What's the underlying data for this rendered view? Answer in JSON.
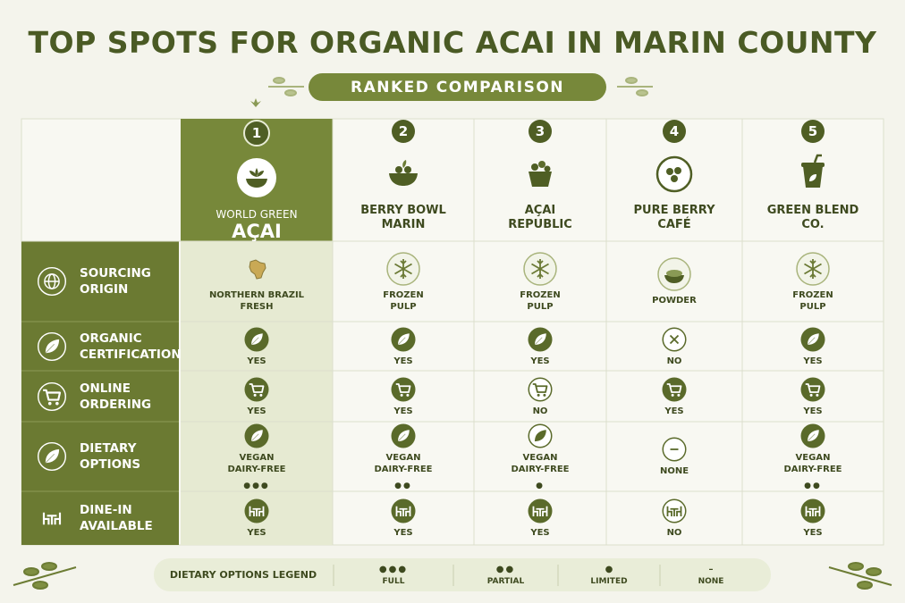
{
  "title": "TOP SPOTS FOR ORGANIC ACAI IN MARIN COUNTY",
  "subtitle": "RANKED COMPARISON",
  "columns": [
    {
      "rank": "1",
      "name": [
        "WORLD GREEN",
        "AÇAI"
      ]
    },
    {
      "rank": "2",
      "name": [
        "BERRY BOWL",
        "MARIN"
      ]
    },
    {
      "rank": "3",
      "name": [
        "AÇAI",
        "REPUBLIC"
      ]
    },
    {
      "rank": "4",
      "name": [
        "PURE BERRY",
        "CAFÉ"
      ]
    },
    {
      "rank": "5",
      "name": [
        "GREEN BLEND",
        "CO."
      ]
    }
  ],
  "rows": [
    {
      "label": [
        "SOURCING",
        "ORIGIN"
      ],
      "cells": [
        {
          "text": [
            "NORTHERN BRAZIL",
            "FRESH"
          ]
        },
        {
          "text": [
            "FROZEN",
            "PULP"
          ]
        },
        {
          "text": [
            "FROZEN",
            "PULP"
          ]
        },
        {
          "text": [
            "POWDER"
          ]
        },
        {
          "text": [
            "FROZEN",
            "PULP"
          ]
        }
      ]
    },
    {
      "label": [
        "ORGANIC",
        "CERTIFICATION"
      ],
      "cells": [
        {
          "text": [
            "YES"
          ]
        },
        {
          "text": [
            "YES"
          ]
        },
        {
          "text": [
            "YES"
          ]
        },
        {
          "text": [
            "NO"
          ]
        },
        {
          "text": [
            "YES"
          ]
        }
      ]
    },
    {
      "label": [
        "ONLINE",
        "ORDERING"
      ],
      "cells": [
        {
          "text": [
            "YES"
          ]
        },
        {
          "text": [
            "YES"
          ]
        },
        {
          "text": [
            "NO"
          ]
        },
        {
          "text": [
            "YES"
          ]
        },
        {
          "text": [
            "YES"
          ]
        }
      ]
    },
    {
      "label": [
        "DIETARY",
        "OPTIONS"
      ],
      "cells": [
        {
          "text": [
            "VEGAN",
            "DAIRY-FREE"
          ],
          "dots": "●●●"
        },
        {
          "text": [
            "VEGAN",
            "DAIRY-FREE"
          ],
          "dots": "●●"
        },
        {
          "text": [
            "VEGAN",
            "DAIRY-FREE"
          ],
          "dots": "●"
        },
        {
          "text": [
            "NONE"
          ]
        },
        {
          "text": [
            "VEGAN",
            "DAIRY-FREE"
          ],
          "dots": "●●"
        }
      ]
    },
    {
      "label": [
        "DINE-IN",
        "AVAILABLE"
      ],
      "cells": [
        {
          "text": [
            "YES"
          ]
        },
        {
          "text": [
            "YES"
          ]
        },
        {
          "text": [
            "YES"
          ]
        },
        {
          "text": [
            "NO"
          ]
        },
        {
          "text": [
            "YES"
          ]
        }
      ]
    }
  ],
  "legend": {
    "title": "DIETARY OPTIONS LEGEND",
    "items": [
      {
        "symbol": "●●●",
        "label": "FULL"
      },
      {
        "symbol": "●●",
        "label": "PARTIAL"
      },
      {
        "symbol": "●",
        "label": "LIMITED"
      },
      {
        "symbol": "–",
        "label": "NONE"
      }
    ]
  }
}
